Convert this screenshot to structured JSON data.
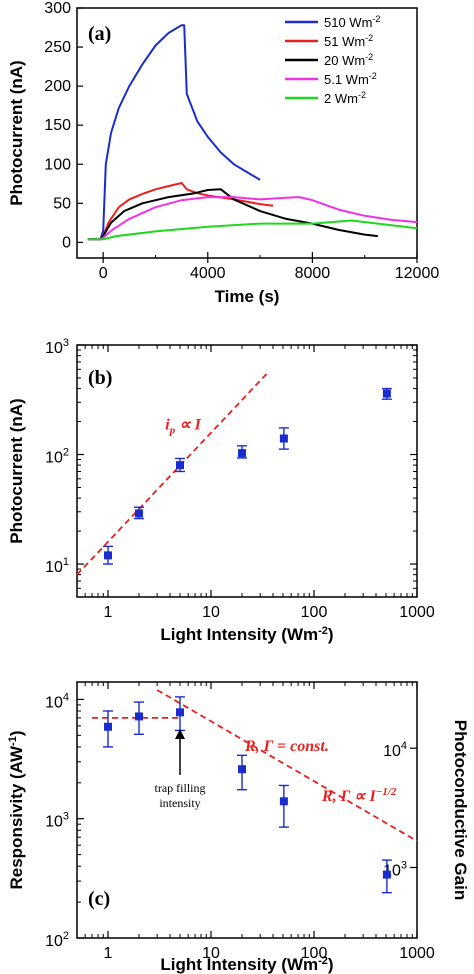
{
  "chart_data": [
    {
      "panel": "(a)",
      "type": "line",
      "xlabel": "Time (s)",
      "ylabel": "Photocurrent (nA)",
      "xlim": [
        -1000,
        12000
      ],
      "ylim": [
        -20,
        300
      ],
      "xticks": [
        {
          "value": 0,
          "label": "0"
        },
        {
          "value": 4000,
          "label": "4000"
        },
        {
          "value": 8000,
          "label": "8000"
        },
        {
          "value": 12000,
          "label": "12000"
        }
      ],
      "yticks": [
        {
          "value": 0,
          "label": "0"
        },
        {
          "value": 50,
          "label": "50"
        },
        {
          "value": 100,
          "label": "100"
        },
        {
          "value": 150,
          "label": "150"
        },
        {
          "value": 200,
          "label": "200"
        },
        {
          "value": 250,
          "label": "250"
        },
        {
          "value": 300,
          "label": "300"
        }
      ],
      "legend_position": "top-right",
      "series": [
        {
          "name": "510 Wm",
          "sup": "-2",
          "color": "#1a2ccc",
          "x": [
            -600,
            -100,
            0,
            100,
            300,
            600,
            1000,
            1500,
            2000,
            2500,
            3000,
            3100,
            3200,
            3600,
            4000,
            4500,
            5000,
            5500,
            6000
          ],
          "y": [
            4,
            4,
            15,
            100,
            140,
            172,
            200,
            228,
            252,
            268,
            278,
            278,
            190,
            155,
            135,
            115,
            100,
            90,
            80
          ]
        },
        {
          "name": "51 Wm",
          "sup": "-2",
          "color": "#e8201e",
          "x": [
            -600,
            -100,
            0,
            200,
            600,
            1000,
            1500,
            2000,
            2500,
            3000,
            3200,
            3600,
            4000,
            5000,
            6000,
            6500
          ],
          "y": [
            4,
            4,
            8,
            25,
            45,
            55,
            62,
            68,
            72,
            76,
            68,
            63,
            60,
            55,
            49,
            47
          ]
        },
        {
          "name": "20 Wm",
          "sup": "-2",
          "color": "#000000",
          "x": [
            -600,
            -100,
            0,
            300,
            800,
            1500,
            2500,
            3500,
            4000,
            4500,
            5000,
            6000,
            7000,
            8000,
            9000,
            10000,
            10500
          ],
          "y": [
            4,
            4,
            8,
            25,
            40,
            50,
            58,
            63,
            67,
            68,
            55,
            40,
            30,
            24,
            16,
            10,
            8
          ]
        },
        {
          "name": "5.1 Wm",
          "sup": "-2",
          "color": "#f032e6",
          "x": [
            -600,
            -100,
            0,
            300,
            1000,
            2000,
            3000,
            4000,
            5000,
            6000,
            7000,
            7500,
            8000,
            9000,
            10000,
            11000,
            12000
          ],
          "y": [
            4,
            4,
            6,
            15,
            30,
            45,
            54,
            58,
            58,
            55,
            57,
            58,
            54,
            42,
            34,
            29,
            26
          ]
        },
        {
          "name": "2 Wm",
          "sup": "-2",
          "color": "#1ed81e",
          "x": [
            -600,
            -100,
            0,
            500,
            2000,
            4000,
            6000,
            8000,
            9500,
            10500,
            12000
          ],
          "y": [
            4,
            4,
            4,
            8,
            14,
            20,
            24,
            24,
            28,
            24,
            18
          ]
        }
      ]
    },
    {
      "panel": "(b)",
      "type": "scatter",
      "xlabel": "Light Intensity (Wm",
      "xlabel_sup": "-2",
      "xlabel_end": ")",
      "ylabel": "Photocurrent (nA)",
      "xscale": "log",
      "yscale": "log",
      "xlim": [
        0.5,
        1000
      ],
      "ylim": [
        5,
        1000
      ],
      "xticks": [
        {
          "value": 1,
          "label": "1"
        },
        {
          "value": 10,
          "label": "10"
        },
        {
          "value": 100,
          "label": "100"
        },
        {
          "value": 1000,
          "label": "1000"
        }
      ],
      "yticks": [
        {
          "value": 10,
          "base": "10",
          "exp": "1"
        },
        {
          "value": 100,
          "base": "10",
          "exp": "2"
        },
        {
          "value": 1000,
          "base": "10",
          "exp": "3"
        }
      ],
      "points": [
        {
          "x": 1,
          "y": 12,
          "lo": 10,
          "hi": 14.5
        },
        {
          "x": 2,
          "y": 29,
          "lo": 26,
          "hi": 33
        },
        {
          "x": 5,
          "y": 80,
          "lo": 70,
          "hi": 92
        },
        {
          "x": 20,
          "y": 103,
          "lo": 93,
          "hi": 120
        },
        {
          "x": 51,
          "y": 140,
          "lo": 112,
          "hi": 175
        },
        {
          "x": 510,
          "y": 360,
          "lo": 320,
          "hi": 400
        }
      ],
      "marker_color": "#1a2ccc",
      "fit_line": {
        "x": [
          0.5,
          35
        ],
        "y": [
          8,
          550
        ],
        "color": "#e8201e"
      },
      "annotation": {
        "text_i": "i",
        "text_sub": "p",
        "text_rest": " ∝ I",
        "x": 3.6,
        "y": 170
      }
    },
    {
      "panel": "(c)",
      "type": "scatter",
      "xlabel": "Light Intensity (Wm",
      "xlabel_sup": "-2",
      "xlabel_end": ")",
      "ylabel": "Responsivity (AW",
      "ylabel_sup": "-1",
      "ylabel_end": ")",
      "ylabel_right": "Photoconductive Gain",
      "xscale": "log",
      "yscale": "log",
      "xlim": [
        0.5,
        1000
      ],
      "ylim": [
        100,
        14000
      ],
      "xticks": [
        {
          "value": 1,
          "label": "1"
        },
        {
          "value": 10,
          "label": "10"
        },
        {
          "value": 100,
          "label": "100"
        },
        {
          "value": 1000,
          "label": "1000"
        }
      ],
      "yticks": [
        {
          "value": 100,
          "base": "10",
          "exp": "2"
        },
        {
          "value": 1000,
          "base": "10",
          "exp": "3"
        },
        {
          "value": 10000,
          "base": "10",
          "exp": "4"
        }
      ],
      "right_ticks": [
        {
          "value": 390,
          "base": "10",
          "exp": "3"
        },
        {
          "value": 3900,
          "base": "10",
          "exp": "4"
        }
      ],
      "points": [
        {
          "x": 1,
          "y": 5900,
          "lo": 4000,
          "hi": 8000
        },
        {
          "x": 2,
          "y": 7200,
          "lo": 5100,
          "hi": 9500
        },
        {
          "x": 5,
          "y": 7800,
          "lo": 5500,
          "hi": 10500
        },
        {
          "x": 20,
          "y": 2600,
          "lo": 1750,
          "hi": 3400
        },
        {
          "x": 51,
          "y": 1400,
          "lo": 850,
          "hi": 1900
        },
        {
          "x": 510,
          "y": 340,
          "lo": 240,
          "hi": 450
        }
      ],
      "marker_color": "#1a2ccc",
      "const_line": {
        "x": [
          0.7,
          5
        ],
        "y": 7000,
        "color": "#e8201e"
      },
      "decay_line": {
        "x": [
          3,
          1000
        ],
        "y": [
          12000,
          650
        ],
        "color": "#e8201e"
      },
      "annotation_const": "R, Γ = const.",
      "annotation_decay": "R, Γ ∝ I",
      "annotation_decay_sup": "−1/2",
      "annotation_trap_1": "trap filling",
      "annotation_trap_2": "intensity"
    }
  ]
}
